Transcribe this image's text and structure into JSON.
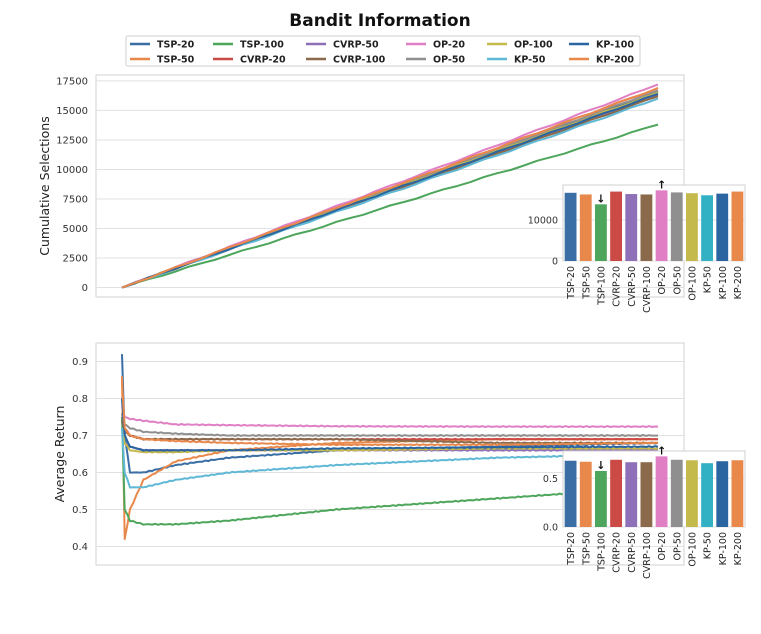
{
  "title": "Bandit Information",
  "legend": [
    {
      "name": "TSP-20",
      "color": "#3a6ea5"
    },
    {
      "name": "TSP-100",
      "color": "#4ea65c"
    },
    {
      "name": "CVRP-50",
      "color": "#8e70b8"
    },
    {
      "name": "OP-20",
      "color": "#e07fc4"
    },
    {
      "name": "OP-100",
      "color": "#c4b94b"
    },
    {
      "name": "KP-100",
      "color": "#2a65a1"
    },
    {
      "name": "TSP-50",
      "color": "#e8884b"
    },
    {
      "name": "CVRP-20",
      "color": "#cc4a45"
    },
    {
      "name": "CVRP-100",
      "color": "#8b6a4c"
    },
    {
      "name": "OP-50",
      "color": "#8f8f8f"
    },
    {
      "name": "KP-50",
      "color": "#5fb8d5"
    },
    {
      "name": "KP-200",
      "color": "#e8884b"
    }
  ],
  "chart_data": [
    {
      "type": "line",
      "ylabel": "Cumulative Selections",
      "xlabel": "",
      "ylim": [
        -800,
        18000
      ],
      "yticks": [
        0,
        2500,
        5000,
        7500,
        10000,
        12500,
        15000,
        17500
      ],
      "ytick_labels": [
        "0",
        "2500",
        "5000",
        "7500",
        "10000",
        "12500",
        "15000",
        "17500"
      ],
      "x": [
        0,
        1000
      ],
      "series": [
        {
          "name": "TSP-20",
          "values": [
            0,
            16600
          ]
        },
        {
          "name": "TSP-50",
          "values": [
            0,
            16200
          ]
        },
        {
          "name": "TSP-100",
          "values": [
            0,
            13800
          ]
        },
        {
          "name": "CVRP-20",
          "values": [
            0,
            16900
          ]
        },
        {
          "name": "CVRP-50",
          "values": [
            0,
            16300
          ]
        },
        {
          "name": "CVRP-100",
          "values": [
            0,
            16200
          ]
        },
        {
          "name": "OP-20",
          "values": [
            0,
            17200
          ]
        },
        {
          "name": "OP-50",
          "values": [
            0,
            16700
          ]
        },
        {
          "name": "OP-100",
          "values": [
            0,
            16500
          ]
        },
        {
          "name": "KP-50",
          "values": [
            0,
            16000
          ]
        },
        {
          "name": "KP-100",
          "values": [
            0,
            16400
          ]
        },
        {
          "name": "KP-200",
          "values": [
            0,
            16900
          ]
        }
      ]
    },
    {
      "type": "bar",
      "inset_of": "Cumulative Selections",
      "categories": [
        "TSP-20",
        "TSP-50",
        "TSP-100",
        "CVRP-20",
        "CVRP-50",
        "CVRP-100",
        "OP-20",
        "OP-50",
        "OP-100",
        "KP-50",
        "KP-100",
        "KP-200"
      ],
      "values": [
        16600,
        16200,
        13800,
        16900,
        16300,
        16200,
        17200,
        16700,
        16500,
        16000,
        16400,
        16900
      ],
      "ylim": [
        0,
        18500
      ],
      "yticks": [
        0,
        10000
      ],
      "ytick_labels": [
        "0",
        "10000"
      ],
      "annotations": [
        {
          "category": "TSP-100",
          "marker": "↓"
        },
        {
          "category": "OP-20",
          "marker": "↑"
        }
      ]
    },
    {
      "type": "line",
      "ylabel": "Average Return",
      "xlabel": "",
      "ylim": [
        0.35,
        0.95
      ],
      "yticks": [
        0.4,
        0.5,
        0.6,
        0.7,
        0.8,
        0.9
      ],
      "ytick_labels": [
        "0.4",
        "0.5",
        "0.6",
        "0.7",
        "0.8",
        "0.9"
      ],
      "x": [
        0,
        5,
        15,
        40,
        100,
        200,
        400,
        700,
        1000
      ],
      "series": [
        {
          "name": "TSP-20",
          "values": [
            0.92,
            0.7,
            0.6,
            0.6,
            0.62,
            0.64,
            0.66,
            0.67,
            0.68
          ]
        },
        {
          "name": "TSP-50",
          "values": [
            0.86,
            0.42,
            0.5,
            0.58,
            0.63,
            0.66,
            0.68,
            0.69,
            0.69
          ]
        },
        {
          "name": "TSP-100",
          "values": [
            0.75,
            0.5,
            0.47,
            0.46,
            0.46,
            0.47,
            0.5,
            0.53,
            0.56
          ]
        },
        {
          "name": "CVRP-20",
          "values": [
            0.76,
            0.72,
            0.7,
            0.69,
            0.69,
            0.69,
            0.69,
            0.69,
            0.69
          ]
        },
        {
          "name": "CVRP-50",
          "values": [
            0.7,
            0.68,
            0.67,
            0.66,
            0.66,
            0.66,
            0.66,
            0.66,
            0.66
          ]
        },
        {
          "name": "CVRP-100",
          "values": [
            0.74,
            0.71,
            0.7,
            0.69,
            0.69,
            0.69,
            0.69,
            0.68,
            0.68
          ]
        },
        {
          "name": "OP-20",
          "values": [
            0.78,
            0.75,
            0.745,
            0.74,
            0.73,
            0.728,
            0.725,
            0.724,
            0.724
          ]
        },
        {
          "name": "OP-50",
          "values": [
            0.76,
            0.73,
            0.72,
            0.71,
            0.705,
            0.7,
            0.7,
            0.7,
            0.7
          ]
        },
        {
          "name": "OP-100",
          "values": [
            0.72,
            0.68,
            0.66,
            0.655,
            0.655,
            0.66,
            0.66,
            0.665,
            0.665
          ]
        },
        {
          "name": "KP-50",
          "values": [
            0.72,
            0.6,
            0.56,
            0.56,
            0.58,
            0.6,
            0.62,
            0.64,
            0.65
          ]
        },
        {
          "name": "KP-100",
          "values": [
            0.8,
            0.7,
            0.67,
            0.66,
            0.66,
            0.66,
            0.665,
            0.668,
            0.67
          ]
        },
        {
          "name": "KP-200",
          "values": [
            0.85,
            0.72,
            0.7,
            0.69,
            0.685,
            0.68,
            0.675,
            0.675,
            0.68
          ]
        }
      ]
    },
    {
      "type": "bar",
      "inset_of": "Average Return",
      "categories": [
        "TSP-20",
        "TSP-50",
        "TSP-100",
        "CVRP-20",
        "CVRP-50",
        "CVRP-100",
        "OP-20",
        "OP-50",
        "OP-100",
        "KP-50",
        "KP-100",
        "KP-200"
      ],
      "values": [
        0.68,
        0.67,
        0.575,
        0.69,
        0.665,
        0.665,
        0.725,
        0.69,
        0.685,
        0.655,
        0.675,
        0.685
      ],
      "ylim": [
        0,
        0.78
      ],
      "yticks": [
        0.0,
        0.5
      ],
      "ytick_labels": [
        "0.0",
        "0.5"
      ],
      "annotations": [
        {
          "category": "TSP-100",
          "marker": "↓"
        },
        {
          "category": "OP-20",
          "marker": "↑"
        }
      ]
    }
  ],
  "bar_colors": [
    "#3a6ea5",
    "#e8884b",
    "#4ea65c",
    "#cc4a45",
    "#8e70b8",
    "#8b6a4c",
    "#e07fc4",
    "#8f8f8f",
    "#c4b94b",
    "#33b1c4",
    "#2a65a1",
    "#e8884b"
  ]
}
